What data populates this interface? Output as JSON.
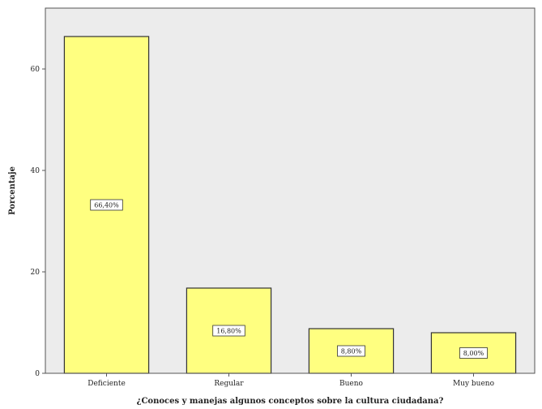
{
  "chart_data": {
    "type": "bar",
    "categories": [
      "Deficiente",
      "Regular",
      "Bueno",
      "Muy bueno"
    ],
    "values": [
      66.4,
      16.8,
      8.8,
      8.0
    ],
    "data_labels": [
      "66,40%",
      "16,80%",
      "8,80%",
      "8,00%"
    ],
    "xlabel": "¿Conoces y manejas algunos conceptos sobre la cultura ciudadana?",
    "ylabel": "Porcentaje",
    "ylim": [
      0,
      72
    ],
    "yticks": [
      0,
      20,
      40,
      60
    ],
    "ytick_labels": [
      "0",
      "20",
      "40",
      "60"
    ],
    "grid": false,
    "legend": "none",
    "colors": {
      "plot_background": "#ececec",
      "bar_fill": "#ffff80",
      "bar_stroke": "#333333",
      "label_box": "#ffffff"
    }
  }
}
